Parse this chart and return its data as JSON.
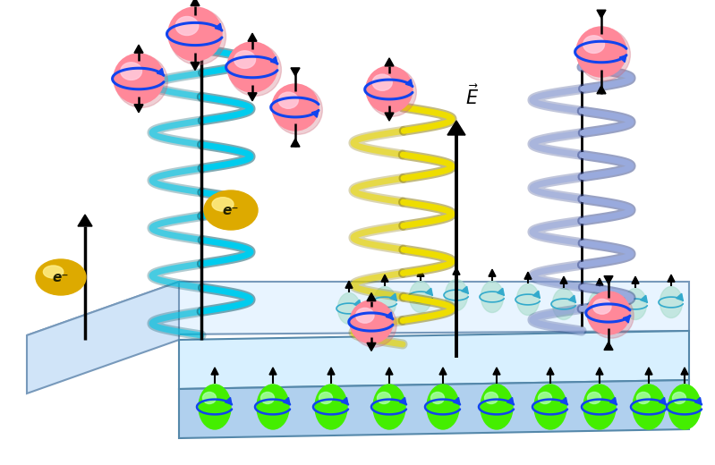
{
  "bg_color": "#ffffff",
  "cyan_color": "#00CCEE",
  "cyan_dark": "#005566",
  "yellow_color": "#EEDD00",
  "yellow_dark": "#887700",
  "blue_color": "#99AADD",
  "blue_dark": "#334488",
  "pink_color": "#FF8899",
  "pink_light": "#FFCCDD",
  "pink_mid": "#FFAABB",
  "green_color": "#44EE00",
  "green_light": "#AAFFAA",
  "gold_color": "#DDAA00",
  "gold_light": "#FFEE88",
  "spin_blue": "#1144EE",
  "ghost_green": "#AADDCC",
  "ghost_spin": "#33AACC",
  "platform_top": "#E8F4FF",
  "platform_left": "#D0E4F8",
  "platform_right": "#C0D4EC",
  "box_top": "#D8F0FF",
  "box_front": "#B0D0EE"
}
